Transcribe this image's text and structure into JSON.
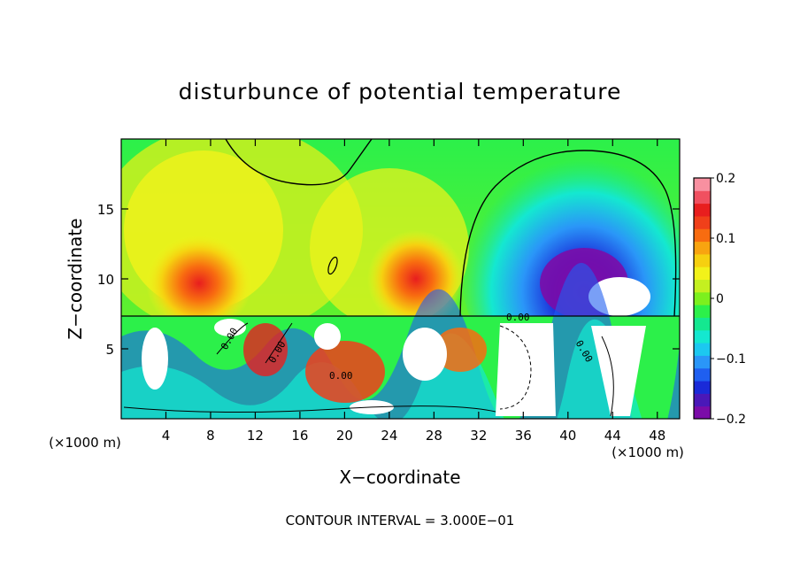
{
  "chart_data": {
    "type": "heatmap",
    "title": "disturbunce of potential temperature",
    "xlabel": "X−coordinate",
    "ylabel": "Z−coordinate",
    "x_unit": "(×1000 m)",
    "x_unit_right": "(×1000 m)",
    "footer": "CONTOUR INTERVAL = 3.000E−01",
    "xlim": [
      0,
      50
    ],
    "ylim": [
      0,
      20
    ],
    "x_ticks": [
      4,
      8,
      12,
      16,
      20,
      24,
      28,
      32,
      36,
      40,
      44,
      48
    ],
    "x_tick_labels": [
      "4",
      "8",
      "12",
      "16",
      "20",
      "24",
      "28",
      "32",
      "36",
      "40",
      "44",
      "48"
    ],
    "y_ticks": [
      5,
      10,
      15
    ],
    "y_tick_labels": [
      "5",
      "10",
      "15"
    ],
    "colorbar": {
      "range": [
        -0.2,
        0.2
      ],
      "tick_values": [
        0.2,
        0.1,
        0,
        -0.1,
        -0.2
      ],
      "tick_labels": [
        "0.2",
        "0.1",
        "0",
        "−0.1",
        "−0.2"
      ],
      "colors": [
        "#7b0ca8",
        "#4a18b8",
        "#1a2ad8",
        "#1f5ff0",
        "#2a96f8",
        "#1cc8f0",
        "#14e8d0",
        "#14e890",
        "#2cf04a",
        "#7cf01e",
        "#c4f020",
        "#f2f21a",
        "#f6d010",
        "#f8a410",
        "#f86c10",
        "#f0401a",
        "#e81e1e",
        "#f05060",
        "#f890a0"
      ]
    },
    "contour_labels": [
      "0.00",
      "0.00",
      "0.00",
      "0.00",
      "0.00"
    ]
  }
}
